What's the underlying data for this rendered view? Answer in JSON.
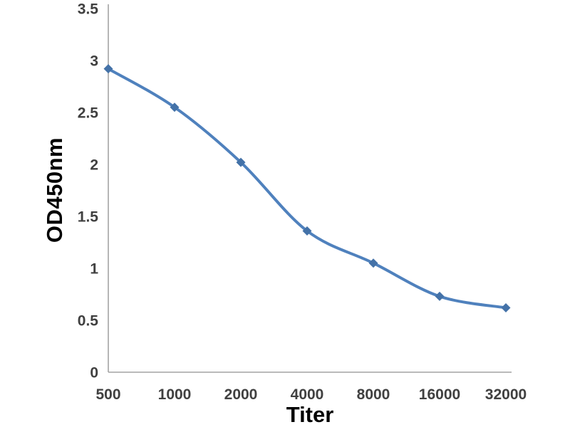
{
  "chart_data": {
    "type": "line",
    "title": "",
    "categories": [
      "500",
      "1000",
      "2000",
      "4000",
      "8000",
      "16000",
      "32000"
    ],
    "series": [
      {
        "name": "OD450nm",
        "values": [
          2.92,
          2.55,
          2.02,
          1.36,
          1.05,
          0.73,
          0.62
        ]
      }
    ],
    "xlabel": "Titer",
    "ylabel": "OD450nm",
    "ylim": [
      0,
      3.5
    ],
    "yticks": [
      0,
      0.5,
      1,
      1.5,
      2,
      2.5,
      3,
      3.5
    ],
    "grid": false,
    "legend": "none",
    "smooth": true,
    "marker": "diamond",
    "colors": {
      "line": "#4f81bd",
      "marker": "#4472a8",
      "axis": "#a3a3a3",
      "tick_text": "#404040",
      "axis_title_text": "#000000",
      "background": "#ffffff"
    }
  }
}
